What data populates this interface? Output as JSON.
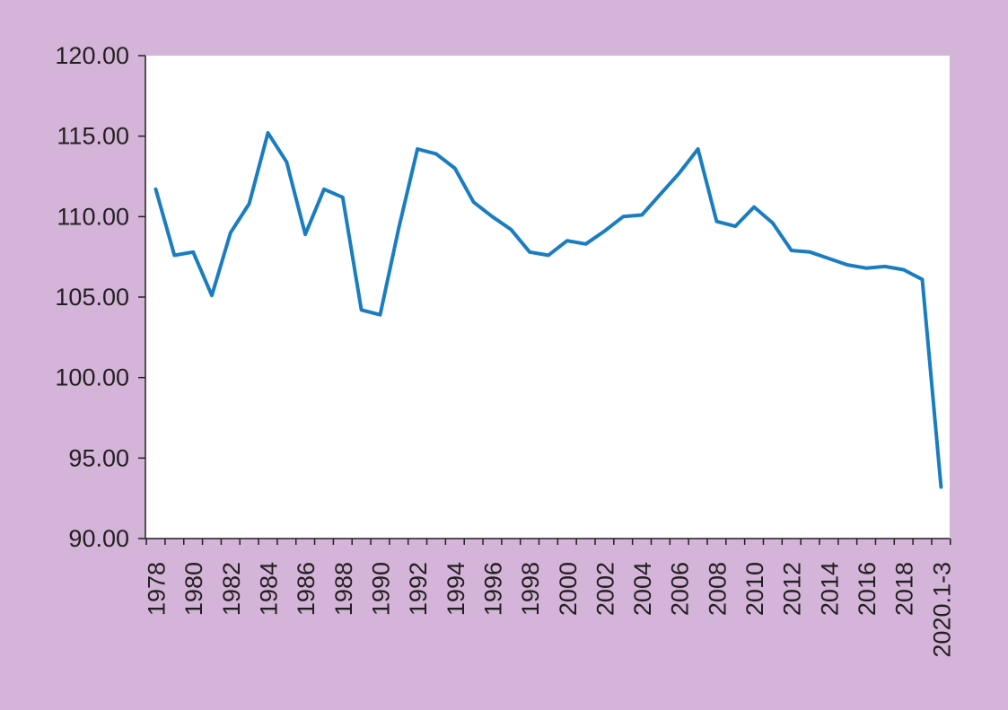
{
  "colors": {
    "background": "#d4b4d9",
    "plot_background": "#ffffff",
    "line": "#1a7dc0",
    "axis": "#231f20"
  },
  "chart_data": {
    "type": "line",
    "title": "",
    "xlabel": "",
    "ylabel": "",
    "ylim": [
      90,
      120
    ],
    "y_ticks": [
      "90.00",
      "95.00",
      "100.00",
      "105.00",
      "110.00",
      "115.00",
      "120.00"
    ],
    "x_tick_labels": [
      "1978",
      "1980",
      "1982",
      "1984",
      "1986",
      "1988",
      "1990",
      "1992",
      "1994",
      "1996",
      "1998",
      "2000",
      "2002",
      "2004",
      "2006",
      "2008",
      "2010",
      "2012",
      "2014",
      "2016",
      "2018",
      "2020.1-3"
    ],
    "grid": false,
    "legend": "none",
    "series": [
      {
        "x": [
          "1978",
          "1979",
          "1980",
          "1981",
          "1982",
          "1983",
          "1984",
          "1985",
          "1986",
          "1987",
          "1988",
          "1989",
          "1990",
          "1991",
          "1992",
          "1993",
          "1994",
          "1995",
          "1996",
          "1997",
          "1998",
          "1999",
          "2000",
          "2001",
          "2002",
          "2003",
          "2004",
          "2005",
          "2006",
          "2007",
          "2008",
          "2009",
          "2010",
          "2011",
          "2012",
          "2013",
          "2014",
          "2015",
          "2016",
          "2017",
          "2018",
          "2019",
          "2020.1-3"
        ],
        "values": [
          111.7,
          107.6,
          107.8,
          105.1,
          109.0,
          110.8,
          115.2,
          113.4,
          108.9,
          111.7,
          111.2,
          104.2,
          103.9,
          109.3,
          114.2,
          113.9,
          113.0,
          110.9,
          110.0,
          109.2,
          107.8,
          107.6,
          108.5,
          108.3,
          109.1,
          110.0,
          110.1,
          111.4,
          112.7,
          114.2,
          109.7,
          109.4,
          110.6,
          109.6,
          107.9,
          107.8,
          107.4,
          107.0,
          106.8,
          106.9,
          106.7,
          106.1,
          93.2
        ]
      }
    ]
  }
}
